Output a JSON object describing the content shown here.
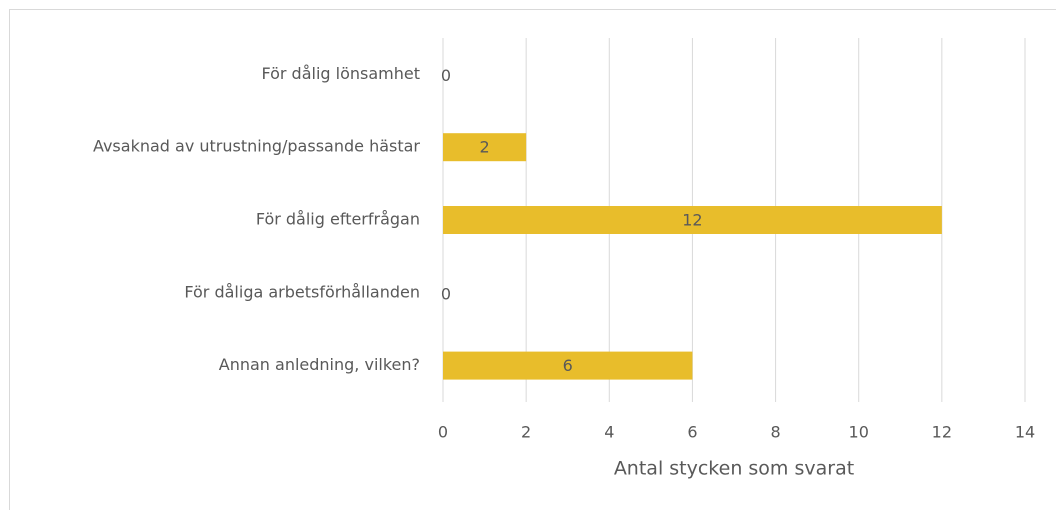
{
  "chart_data": {
    "type": "bar",
    "orientation": "horizontal",
    "categories": [
      "För dålig lönsamhet",
      "Avsaknad av utrustning/passande hästar",
      "För dålig efterfrågan",
      "För dåliga arbetsförhållanden",
      "Annan anledning, vilken?"
    ],
    "values": [
      0,
      2,
      12,
      0,
      6
    ],
    "color": "#e8bd2b",
    "x_label": "Antal stycken som svarat",
    "xlim": [
      0,
      14
    ],
    "xticks": [
      0,
      2,
      4,
      6,
      8,
      10,
      12,
      14
    ],
    "grid": true
  }
}
